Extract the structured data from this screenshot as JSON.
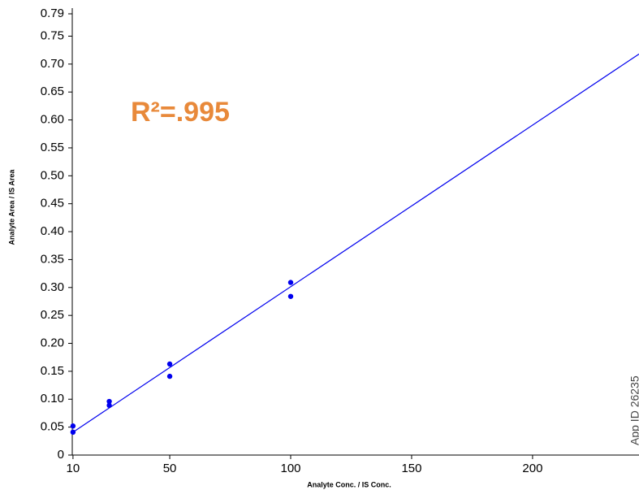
{
  "chart_data": {
    "type": "scatter",
    "xlabel": "Analyte Conc. / IS Conc.",
    "ylabel": "Analyte Area / IS Area",
    "annotation": "R²=.995",
    "watermark": "App ID 26235",
    "x": [
      10,
      10,
      25,
      25,
      50,
      50,
      100,
      100
    ],
    "values": [
      0.052,
      0.041,
      0.096,
      0.089,
      0.163,
      0.141,
      0.309,
      0.284
    ],
    "color": "#0000ee",
    "fit_line": {
      "x": [
        10,
        244
      ],
      "values": [
        0.041,
        0.718
      ],
      "color": "#0000ee"
    },
    "xlim": [
      9.7,
      244
    ],
    "xticks": [
      10,
      50,
      100,
      150,
      200
    ],
    "ylim": [
      0,
      0.79
    ],
    "yticks": [
      0,
      0.05,
      {
        "value": 0.1,
        "label": "0.10"
      },
      0.15,
      {
        "value": 0.2,
        "label": "0.20"
      },
      0.25,
      {
        "value": 0.3,
        "label": "0.30"
      },
      0.35,
      {
        "value": 0.4,
        "label": "0.40"
      },
      0.45,
      {
        "value": 0.5,
        "label": "0.50"
      },
      0.55,
      {
        "value": 0.6,
        "label": "0.60"
      },
      0.65,
      {
        "value": 0.7,
        "label": "0.70"
      },
      0.75,
      0.79
    ]
  }
}
